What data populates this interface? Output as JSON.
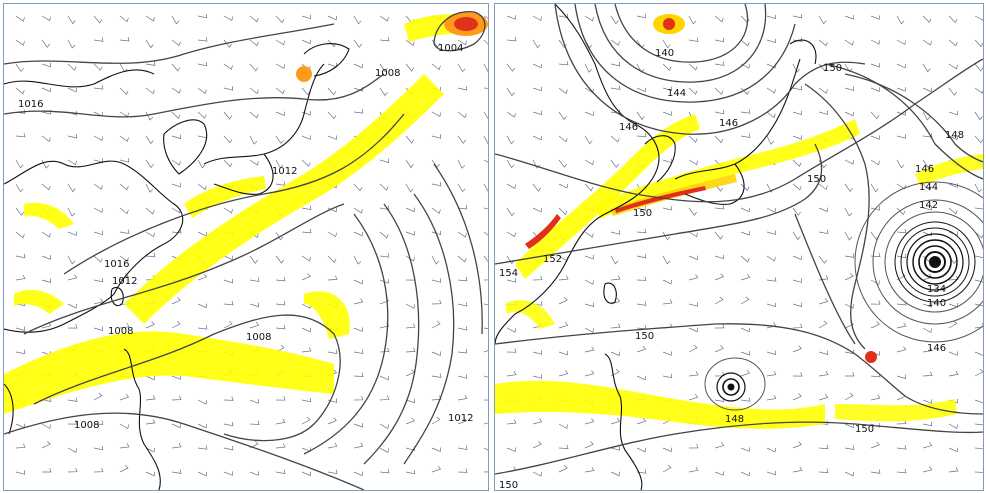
{
  "left_panel": {
    "labels": [
      "1004",
      "1008",
      "1016",
      "1012",
      "1012",
      "1008",
      "1008",
      "1016",
      "1008",
      "1012"
    ]
  },
  "right_panel": {
    "labels": [
      "140",
      "144",
      "146",
      "146",
      "150",
      "150",
      "152",
      "154",
      "150",
      "148",
      "146",
      "144",
      "142",
      "134",
      "140",
      "146",
      "148",
      "150",
      "150",
      "150"
    ]
  },
  "colors": {
    "jet_light": "#ffff00",
    "jet_mid": "#ffd400",
    "jet_orange": "#ff9a1a",
    "jet_red": "#e0301a",
    "contour": "#444444",
    "barb": "#6a6f9a"
  }
}
